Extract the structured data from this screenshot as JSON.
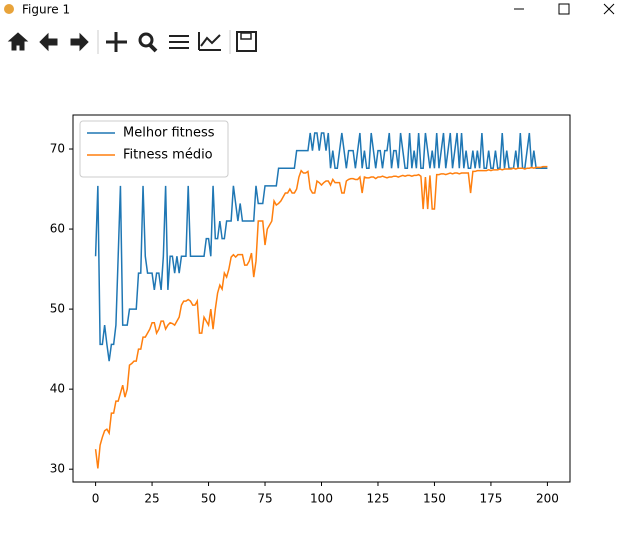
{
  "window": {
    "title": "Figure 1"
  },
  "chart_data": {
    "type": "line",
    "x": [
      0,
      1,
      2,
      3,
      4,
      5,
      6,
      7,
      8,
      9,
      10,
      11,
      12,
      13,
      14,
      15,
      16,
      17,
      18,
      19,
      20,
      21,
      22,
      23,
      24,
      25,
      26,
      27,
      28,
      29,
      30,
      31,
      32,
      33,
      34,
      35,
      36,
      37,
      38,
      39,
      40,
      41,
      42,
      43,
      44,
      45,
      46,
      47,
      48,
      49,
      50,
      51,
      52,
      53,
      54,
      55,
      56,
      57,
      58,
      59,
      60,
      61,
      62,
      63,
      64,
      65,
      66,
      67,
      68,
      69,
      70,
      71,
      72,
      73,
      74,
      75,
      76,
      77,
      78,
      79,
      80,
      81,
      82,
      83,
      84,
      85,
      86,
      87,
      88,
      89,
      90,
      91,
      92,
      93,
      94,
      95,
      96,
      97,
      98,
      99,
      100,
      101,
      102,
      103,
      104,
      105,
      106,
      107,
      108,
      109,
      110,
      111,
      112,
      113,
      114,
      115,
      116,
      117,
      118,
      119,
      120,
      121,
      122,
      123,
      124,
      125,
      126,
      127,
      128,
      129,
      130,
      131,
      132,
      133,
      134,
      135,
      136,
      137,
      138,
      139,
      140,
      141,
      142,
      143,
      144,
      145,
      146,
      147,
      148,
      149,
      150,
      151,
      152,
      153,
      154,
      155,
      156,
      157,
      158,
      159,
      160,
      161,
      162,
      163,
      164,
      165,
      166,
      167,
      168,
      169,
      170,
      171,
      172,
      173,
      174,
      175,
      176,
      177,
      178,
      179,
      180,
      181,
      182,
      183,
      184,
      185,
      186,
      187,
      188,
      189,
      190,
      191,
      192,
      193,
      194,
      195,
      196,
      197,
      198,
      199,
      200
    ],
    "series": [
      {
        "name": "Melhor fitness",
        "color": "#1f77b4",
        "values": [
          56.6,
          65.4,
          45.6,
          45.6,
          48,
          45.6,
          43.5,
          45.6,
          45.6,
          48,
          56.6,
          65.4,
          48,
          48,
          48,
          50,
          50,
          50,
          50,
          54.5,
          54.5,
          65.4,
          56.6,
          54.5,
          54.5,
          54.5,
          52.4,
          54.5,
          54.5,
          52.4,
          56.6,
          65.4,
          52.4,
          56.6,
          56.6,
          54.5,
          56.6,
          54.5,
          56.6,
          56.6,
          56.6,
          65.4,
          56.6,
          56.6,
          56.6,
          56.6,
          56.6,
          56.6,
          56.6,
          58.8,
          58.8,
          56.6,
          65.4,
          58.8,
          58.8,
          61,
          58.8,
          58.8,
          61,
          61,
          61,
          65.4,
          63.2,
          61,
          63.2,
          61,
          61,
          61,
          61,
          61,
          61,
          65.4,
          63.2,
          63.2,
          63.2,
          65.4,
          65.4,
          65.4,
          65.4,
          65.4,
          65.4,
          67.6,
          67.6,
          67.6,
          67.6,
          67.6,
          67.6,
          67.6,
          67.6,
          69.8,
          69.8,
          69.8,
          69.8,
          69.8,
          69.8,
          72,
          69.8,
          72,
          72,
          69.8,
          72,
          72,
          69.8,
          72,
          67.6,
          69.8,
          67.6,
          67.6,
          69.8,
          72,
          69.8,
          67.6,
          69.8,
          69.8,
          69.8,
          67.6,
          69.8,
          72,
          67.6,
          69.8,
          67.6,
          67.6,
          72,
          69.8,
          67.6,
          69.8,
          69.8,
          67.6,
          69.8,
          69.8,
          72,
          67.6,
          69.8,
          69.8,
          67.6,
          72,
          69.8,
          67.6,
          67.6,
          72,
          67.6,
          69.8,
          67.6,
          72,
          67.6,
          67.6,
          72,
          69.8,
          67.6,
          69.8,
          67.6,
          72,
          67.6,
          69.8,
          72,
          67.6,
          69.8,
          72,
          67.6,
          69.8,
          72,
          67.6,
          72,
          67.6,
          69.8,
          67.6,
          67.6,
          69.8,
          67.6,
          69.8,
          67.6,
          72,
          67.6,
          67.6,
          69.8,
          67.6,
          67.6,
          69.8,
          67.6,
          67.6,
          72,
          67.6,
          69.8,
          67.6,
          67.6,
          67.6,
          69.8,
          67.6,
          72,
          67.6,
          67.6,
          69.8,
          72,
          67.6,
          69.8,
          67.6,
          67.6,
          67.6,
          67.6,
          67.6,
          67.6
        ]
      },
      {
        "name": "Fitness médio",
        "color": "#ff7f0e",
        "values": [
          32.5,
          30.1,
          33,
          34,
          34.8,
          35,
          34.5,
          37,
          37,
          38.5,
          38.5,
          39.5,
          40.5,
          39,
          40,
          43,
          43.2,
          43.5,
          43.5,
          45,
          45,
          46.5,
          46.5,
          47,
          47.5,
          48.3,
          48.3,
          47,
          47.5,
          48.5,
          48.5,
          47.5,
          48,
          48.3,
          48.2,
          48,
          48.5,
          49,
          50.5,
          51,
          51,
          51.2,
          51,
          50.5,
          50.5,
          51,
          47,
          47,
          49,
          48.5,
          48,
          50,
          47.5,
          50,
          52,
          53,
          52.5,
          54.5,
          54,
          55,
          56.5,
          56.8,
          56.5,
          56.8,
          56.8,
          56.8,
          55.5,
          55.5,
          56,
          57,
          54,
          56,
          61,
          61,
          61,
          58,
          60,
          60.5,
          61,
          63.5,
          63,
          63.2,
          63.5,
          64,
          64.5,
          64.5,
          65,
          64.5,
          64.5,
          65,
          66.5,
          67.3,
          67,
          67,
          67.2,
          65,
          64.5,
          64.5,
          66,
          65.8,
          65.5,
          65.8,
          66,
          66,
          65.5,
          66.2,
          65.8,
          65.8,
          65.8,
          64.5,
          64.5,
          66,
          66.2,
          66.3,
          66.3,
          66.2,
          66.2,
          66.5,
          64.5,
          66.5,
          66.4,
          66.4,
          66.5,
          66.5,
          66.3,
          66.5,
          66.5,
          66.6,
          66.5,
          66.4,
          66.5,
          66.5,
          66.6,
          66.6,
          66.5,
          66.6,
          66.7,
          66.6,
          66.7,
          66.7,
          66.6,
          66.7,
          66.7,
          66.8,
          66.6,
          62.5,
          66.5,
          62.5,
          66.7,
          62.5,
          62.5,
          66.8,
          66.8,
          66.9,
          66.9,
          66.8,
          66.9,
          67,
          66.9,
          67,
          67,
          66.9,
          67,
          67,
          67,
          67,
          64.5,
          67.2,
          67.2,
          67.3,
          67.3,
          67.3,
          67.3,
          67.3,
          67.4,
          67.3,
          67.4,
          67.4,
          67.4,
          67.5,
          67.4,
          67.5,
          67.5,
          67.5,
          67.5,
          67.6,
          67.5,
          67.6,
          67.6,
          67.6,
          67.5,
          67.6,
          67.6,
          67.7,
          67.6,
          67.7,
          67.7,
          67.7,
          67.8,
          67.8,
          67.8
        ]
      }
    ],
    "xlim": [
      -10,
      210
    ],
    "xticks": [
      0,
      25,
      50,
      75,
      100,
      125,
      150,
      175,
      200
    ],
    "ylim": [
      28.4,
      74.25
    ],
    "yticks": [
      30,
      40,
      50,
      60,
      70
    ],
    "legend": "upper left",
    "grid": false
  }
}
